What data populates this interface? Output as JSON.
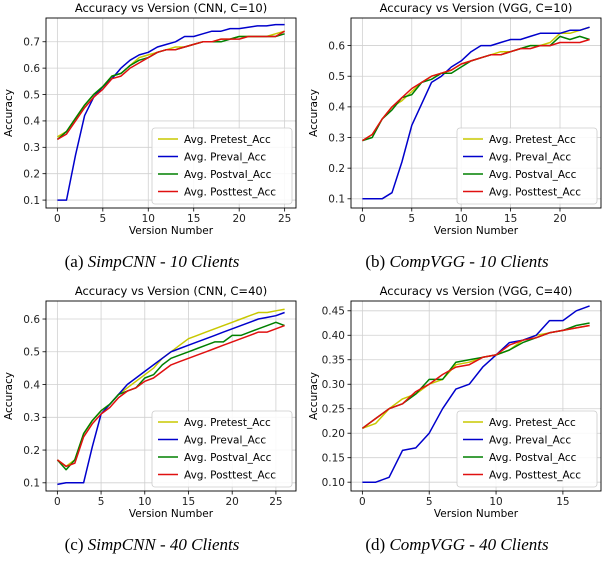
{
  "colors": {
    "pretest": "#c8c800",
    "preval": "#0000cc",
    "postval": "#008000",
    "posttest": "#e01010",
    "grid": "#d0d0d0"
  },
  "chart_data": [
    {
      "type": "line",
      "title": "Accuracy vs Version (CNN, C=10)",
      "xlabel": "Version Number",
      "ylabel": "Accuracy",
      "xlim": [
        -1.25,
        26.25
      ],
      "ylim": [
        0.07,
        0.79
      ],
      "xticks": [
        0,
        5,
        10,
        15,
        20,
        25
      ],
      "yticks": [
        0.1,
        0.2,
        0.3,
        0.4,
        0.5,
        0.6,
        0.7
      ],
      "grid": true,
      "legend": "lower-right",
      "caption": {
        "label": "(a)",
        "title": "SimpCNN - 10 Clients"
      },
      "series": [
        {
          "name": "Avg. Pretest_Acc",
          "color_key": "pretest",
          "x": [
            0,
            1,
            2,
            3,
            4,
            5,
            6,
            7,
            8,
            9,
            10,
            11,
            12,
            13,
            14,
            15,
            16,
            17,
            18,
            19,
            20,
            21,
            22,
            23,
            24,
            25
          ],
          "y": [
            0.34,
            0.36,
            0.41,
            0.46,
            0.5,
            0.53,
            0.57,
            0.58,
            0.61,
            0.64,
            0.65,
            0.66,
            0.67,
            0.68,
            0.68,
            0.69,
            0.7,
            0.7,
            0.71,
            0.71,
            0.72,
            0.72,
            0.72,
            0.72,
            0.73,
            0.74
          ]
        },
        {
          "name": "Avg. Preval_Acc",
          "color_key": "preval",
          "x": [
            0,
            1,
            2,
            3,
            4,
            5,
            6,
            7,
            8,
            9,
            10,
            11,
            12,
            13,
            14,
            15,
            16,
            17,
            18,
            19,
            20,
            21,
            22,
            23,
            24,
            25
          ],
          "y": [
            0.1,
            0.1,
            0.27,
            0.42,
            0.49,
            0.53,
            0.56,
            0.6,
            0.63,
            0.65,
            0.66,
            0.68,
            0.69,
            0.7,
            0.72,
            0.72,
            0.73,
            0.74,
            0.74,
            0.75,
            0.75,
            0.755,
            0.76,
            0.76,
            0.765,
            0.765
          ]
        },
        {
          "name": "Avg. Postval_Acc",
          "color_key": "postval",
          "x": [
            0,
            1,
            2,
            3,
            4,
            5,
            6,
            7,
            8,
            9,
            10,
            11,
            12,
            13,
            14,
            15,
            16,
            17,
            18,
            19,
            20,
            21,
            22,
            23,
            24,
            25
          ],
          "y": [
            0.33,
            0.36,
            0.41,
            0.46,
            0.5,
            0.53,
            0.57,
            0.58,
            0.61,
            0.63,
            0.64,
            0.66,
            0.67,
            0.67,
            0.68,
            0.69,
            0.7,
            0.7,
            0.7,
            0.71,
            0.72,
            0.72,
            0.72,
            0.72,
            0.72,
            0.73
          ]
        },
        {
          "name": "Avg. Posttest_Acc",
          "color_key": "posttest",
          "x": [
            0,
            1,
            2,
            3,
            4,
            5,
            6,
            7,
            8,
            9,
            10,
            11,
            12,
            13,
            14,
            15,
            16,
            17,
            18,
            19,
            20,
            21,
            22,
            23,
            24,
            25
          ],
          "y": [
            0.33,
            0.35,
            0.4,
            0.45,
            0.49,
            0.52,
            0.56,
            0.57,
            0.6,
            0.62,
            0.64,
            0.66,
            0.67,
            0.67,
            0.68,
            0.69,
            0.7,
            0.7,
            0.71,
            0.71,
            0.71,
            0.72,
            0.72,
            0.72,
            0.72,
            0.74
          ]
        }
      ]
    },
    {
      "type": "line",
      "title": "Accuracy vs Version (VGG, C=10)",
      "xlabel": "Version Number",
      "ylabel": "Accuracy",
      "xlim": [
        -1.15,
        24.15
      ],
      "ylim": [
        0.07,
        0.69
      ],
      "xticks": [
        0,
        5,
        10,
        15,
        20
      ],
      "yticks": [
        0.1,
        0.2,
        0.3,
        0.4,
        0.5,
        0.6
      ],
      "grid": true,
      "legend": "lower-right",
      "caption": {
        "label": "(b)",
        "title": "CompVGG - 10 Clients"
      },
      "series": [
        {
          "name": "Avg. Pretest_Acc",
          "color_key": "pretest",
          "x": [
            0,
            1,
            2,
            3,
            4,
            5,
            6,
            7,
            8,
            9,
            10,
            11,
            12,
            13,
            14,
            15,
            16,
            17,
            18,
            19,
            20,
            21,
            22,
            23
          ],
          "y": [
            0.29,
            0.31,
            0.36,
            0.4,
            0.42,
            0.45,
            0.48,
            0.5,
            0.51,
            0.52,
            0.54,
            0.55,
            0.56,
            0.57,
            0.58,
            0.58,
            0.59,
            0.6,
            0.6,
            0.61,
            0.64,
            0.64,
            0.65,
            0.66
          ]
        },
        {
          "name": "Avg. Preval_Acc",
          "color_key": "preval",
          "x": [
            0,
            1,
            2,
            3,
            4,
            5,
            6,
            7,
            8,
            9,
            10,
            11,
            12,
            13,
            14,
            15,
            16,
            17,
            18,
            19,
            20,
            21,
            22,
            23
          ],
          "y": [
            0.1,
            0.1,
            0.1,
            0.12,
            0.22,
            0.34,
            0.41,
            0.48,
            0.5,
            0.53,
            0.55,
            0.58,
            0.6,
            0.6,
            0.61,
            0.62,
            0.62,
            0.63,
            0.64,
            0.64,
            0.64,
            0.65,
            0.65,
            0.66
          ]
        },
        {
          "name": "Avg. Postval_Acc",
          "color_key": "postval",
          "x": [
            0,
            1,
            2,
            3,
            4,
            5,
            6,
            7,
            8,
            9,
            10,
            11,
            12,
            13,
            14,
            15,
            16,
            17,
            18,
            19,
            20,
            21,
            22,
            23
          ],
          "y": [
            0.29,
            0.3,
            0.36,
            0.39,
            0.43,
            0.44,
            0.48,
            0.49,
            0.51,
            0.51,
            0.53,
            0.55,
            0.56,
            0.57,
            0.57,
            0.58,
            0.59,
            0.6,
            0.6,
            0.6,
            0.63,
            0.62,
            0.63,
            0.62
          ]
        },
        {
          "name": "Avg. Posttest_Acc",
          "color_key": "posttest",
          "x": [
            0,
            1,
            2,
            3,
            4,
            5,
            6,
            7,
            8,
            9,
            10,
            11,
            12,
            13,
            14,
            15,
            16,
            17,
            18,
            19,
            20,
            21,
            22,
            23
          ],
          "y": [
            0.29,
            0.31,
            0.36,
            0.4,
            0.43,
            0.46,
            0.48,
            0.5,
            0.51,
            0.52,
            0.54,
            0.55,
            0.56,
            0.57,
            0.57,
            0.58,
            0.59,
            0.59,
            0.6,
            0.6,
            0.61,
            0.61,
            0.61,
            0.62
          ]
        }
      ]
    },
    {
      "type": "line",
      "title": "Accuracy vs Version (CNN, C=40)",
      "xlabel": "Version Number",
      "ylabel": "Accuracy",
      "xlim": [
        -1.3,
        27.3
      ],
      "ylim": [
        0.075,
        0.655
      ],
      "xticks": [
        0,
        5,
        10,
        15,
        20,
        25
      ],
      "yticks": [
        0.1,
        0.2,
        0.3,
        0.4,
        0.5,
        0.6
      ],
      "grid": true,
      "legend": "lower-right",
      "caption": {
        "label": "(c)",
        "title": "SimpCNN - 40 Clients"
      },
      "series": [
        {
          "name": "Avg. Pretest_Acc",
          "color_key": "pretest",
          "x": [
            0,
            1,
            2,
            3,
            4,
            5,
            6,
            7,
            8,
            9,
            10,
            11,
            12,
            13,
            14,
            15,
            16,
            17,
            18,
            19,
            20,
            21,
            22,
            23,
            24,
            25,
            26
          ],
          "y": [
            0.17,
            0.15,
            0.17,
            0.25,
            0.29,
            0.32,
            0.34,
            0.37,
            0.39,
            0.41,
            0.43,
            0.45,
            0.48,
            0.5,
            0.52,
            0.54,
            0.55,
            0.56,
            0.57,
            0.58,
            0.59,
            0.6,
            0.61,
            0.62,
            0.62,
            0.625,
            0.63
          ]
        },
        {
          "name": "Avg. Preval_Acc",
          "color_key": "preval",
          "x": [
            0,
            1,
            2,
            3,
            4,
            5,
            6,
            7,
            8,
            9,
            10,
            11,
            12,
            13,
            14,
            15,
            16,
            17,
            18,
            19,
            20,
            21,
            22,
            23,
            24,
            25,
            26
          ],
          "y": [
            0.095,
            0.1,
            0.1,
            0.1,
            0.21,
            0.31,
            0.34,
            0.37,
            0.4,
            0.42,
            0.44,
            0.46,
            0.48,
            0.5,
            0.51,
            0.52,
            0.53,
            0.54,
            0.55,
            0.56,
            0.57,
            0.58,
            0.59,
            0.6,
            0.605,
            0.61,
            0.62
          ]
        },
        {
          "name": "Avg. Postval_Acc",
          "color_key": "postval",
          "x": [
            0,
            1,
            2,
            3,
            4,
            5,
            6,
            7,
            8,
            9,
            10,
            11,
            12,
            13,
            14,
            15,
            16,
            17,
            18,
            19,
            20,
            21,
            22,
            23,
            24,
            25,
            26
          ],
          "y": [
            0.17,
            0.14,
            0.17,
            0.25,
            0.29,
            0.32,
            0.34,
            0.37,
            0.38,
            0.39,
            0.42,
            0.43,
            0.46,
            0.48,
            0.49,
            0.5,
            0.51,
            0.52,
            0.53,
            0.53,
            0.55,
            0.55,
            0.56,
            0.57,
            0.58,
            0.59,
            0.58
          ]
        },
        {
          "name": "Avg. Posttest_Acc",
          "color_key": "posttest",
          "x": [
            0,
            1,
            2,
            3,
            4,
            5,
            6,
            7,
            8,
            9,
            10,
            11,
            12,
            13,
            14,
            15,
            16,
            17,
            18,
            19,
            20,
            21,
            22,
            23,
            24,
            25,
            26
          ],
          "y": [
            0.17,
            0.15,
            0.16,
            0.24,
            0.28,
            0.31,
            0.33,
            0.36,
            0.38,
            0.39,
            0.41,
            0.42,
            0.44,
            0.46,
            0.47,
            0.48,
            0.49,
            0.5,
            0.51,
            0.52,
            0.53,
            0.54,
            0.55,
            0.56,
            0.56,
            0.57,
            0.58
          ]
        }
      ]
    },
    {
      "type": "line",
      "title": "Accuracy vs Version (VGG, C=40)",
      "xlabel": "Version Number",
      "ylabel": "Accuracy",
      "xlim": [
        -0.85,
        17.85
      ],
      "ylim": [
        0.082,
        0.47
      ],
      "xticks": [
        0,
        5,
        10,
        15
      ],
      "yticks": [
        0.1,
        0.15,
        0.2,
        0.25,
        0.3,
        0.35,
        0.4,
        0.45
      ],
      "ytick_labels": [
        "0.10",
        "0.15",
        "0.20",
        "0.25",
        "0.30",
        "0.35",
        "0.40",
        "0.45"
      ],
      "grid": true,
      "legend": "lower-right",
      "caption": {
        "label": "(d)",
        "title": "CompVGG - 40 Clients"
      },
      "series": [
        {
          "name": "Avg. Pretest_Acc",
          "color_key": "pretest",
          "x": [
            0,
            1,
            2,
            3,
            4,
            5,
            6,
            7,
            8,
            9,
            10,
            11,
            12,
            13,
            14,
            15,
            16,
            17
          ],
          "y": [
            0.21,
            0.22,
            0.25,
            0.27,
            0.28,
            0.3,
            0.31,
            0.34,
            0.345,
            0.355,
            0.36,
            0.37,
            0.39,
            0.4,
            0.405,
            0.41,
            0.415,
            0.42
          ]
        },
        {
          "name": "Avg. Preval_Acc",
          "color_key": "preval",
          "x": [
            0,
            1,
            2,
            3,
            4,
            5,
            6,
            7,
            8,
            9,
            10,
            11,
            12,
            13,
            14,
            15,
            16,
            17
          ],
          "y": [
            0.1,
            0.1,
            0.11,
            0.165,
            0.17,
            0.2,
            0.25,
            0.29,
            0.3,
            0.335,
            0.36,
            0.385,
            0.39,
            0.4,
            0.43,
            0.43,
            0.45,
            0.46
          ]
        },
        {
          "name": "Avg. Postval_Acc",
          "color_key": "postval",
          "x": [
            0,
            1,
            2,
            3,
            4,
            5,
            6,
            7,
            8,
            9,
            10,
            11,
            12,
            13,
            14,
            15,
            16,
            17
          ],
          "y": [
            0.21,
            0.23,
            0.25,
            0.26,
            0.28,
            0.31,
            0.31,
            0.345,
            0.35,
            0.355,
            0.36,
            0.37,
            0.385,
            0.395,
            0.405,
            0.41,
            0.42,
            0.425
          ]
        },
        {
          "name": "Avg. Posttest_Acc",
          "color_key": "posttest",
          "x": [
            0,
            1,
            2,
            3,
            4,
            5,
            6,
            7,
            8,
            9,
            10,
            11,
            12,
            13,
            14,
            15,
            16,
            17
          ],
          "y": [
            0.21,
            0.23,
            0.25,
            0.26,
            0.285,
            0.3,
            0.32,
            0.335,
            0.34,
            0.355,
            0.36,
            0.38,
            0.39,
            0.395,
            0.405,
            0.41,
            0.415,
            0.42
          ]
        }
      ]
    }
  ]
}
